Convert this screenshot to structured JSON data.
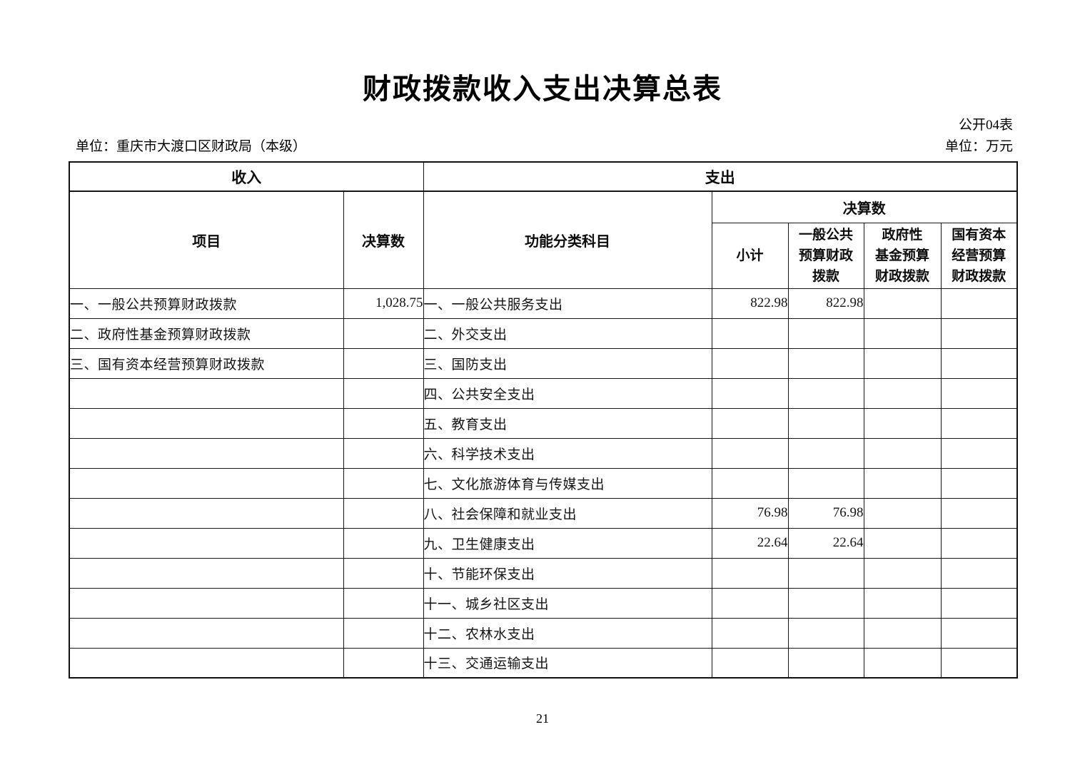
{
  "page": {
    "title": "财政拨款收入支出决算总表",
    "table_code": "公开04表",
    "unit_left": "单位：重庆市大渡口区财政局（本级）",
    "unit_right": "单位：万元",
    "page_number": "21"
  },
  "table": {
    "income_header": "收入",
    "expense_header": "支出",
    "income_columns": [
      "项目",
      "决算数"
    ],
    "expense_item_header": "功能分类科目",
    "expense_total_header": "决算数",
    "expense_sub_columns": [
      "小计",
      "一般公共\n预算财政\n拨款",
      "政府性\n基金预算\n财政拨款",
      "国有资本\n经营预算\n财政拨款"
    ],
    "rows": [
      {
        "income_item": "一、一般公共预算财政拨款",
        "income_amount": "1,028.75",
        "expense_item": "一、一般公共服务支出",
        "subtotal": "822.98",
        "general_budget": "822.98",
        "gov_fund": "",
        "state_capital": ""
      },
      {
        "income_item": "二、政府性基金预算财政拨款",
        "income_amount": "",
        "expense_item": "二、外交支出",
        "subtotal": "",
        "general_budget": "",
        "gov_fund": "",
        "state_capital": ""
      },
      {
        "income_item": "三、国有资本经营预算财政拨款",
        "income_amount": "",
        "expense_item": "三、国防支出",
        "subtotal": "",
        "general_budget": "",
        "gov_fund": "",
        "state_capital": ""
      },
      {
        "income_item": "",
        "income_amount": "",
        "expense_item": "四、公共安全支出",
        "subtotal": "",
        "general_budget": "",
        "gov_fund": "",
        "state_capital": ""
      },
      {
        "income_item": "",
        "income_amount": "",
        "expense_item": "五、教育支出",
        "subtotal": "",
        "general_budget": "",
        "gov_fund": "",
        "state_capital": ""
      },
      {
        "income_item": "",
        "income_amount": "",
        "expense_item": "六、科学技术支出",
        "subtotal": "",
        "general_budget": "",
        "gov_fund": "",
        "state_capital": ""
      },
      {
        "income_item": "",
        "income_amount": "",
        "expense_item": "七、文化旅游体育与传媒支出",
        "subtotal": "",
        "general_budget": "",
        "gov_fund": "",
        "state_capital": ""
      },
      {
        "income_item": "",
        "income_amount": "",
        "expense_item": "八、社会保障和就业支出",
        "subtotal": "76.98",
        "general_budget": "76.98",
        "gov_fund": "",
        "state_capital": ""
      },
      {
        "income_item": "",
        "income_amount": "",
        "expense_item": "九、卫生健康支出",
        "subtotal": "22.64",
        "general_budget": "22.64",
        "gov_fund": "",
        "state_capital": ""
      },
      {
        "income_item": "",
        "income_amount": "",
        "expense_item": "十、节能环保支出",
        "subtotal": "",
        "general_budget": "",
        "gov_fund": "",
        "state_capital": ""
      },
      {
        "income_item": "",
        "income_amount": "",
        "expense_item": "十一、城乡社区支出",
        "subtotal": "",
        "general_budget": "",
        "gov_fund": "",
        "state_capital": ""
      },
      {
        "income_item": "",
        "income_amount": "",
        "expense_item": "十二、农林水支出",
        "subtotal": "",
        "general_budget": "",
        "gov_fund": "",
        "state_capital": ""
      },
      {
        "income_item": "",
        "income_amount": "",
        "expense_item": "十三、交通运输支出",
        "subtotal": "",
        "general_budget": "",
        "gov_fund": "",
        "state_capital": ""
      }
    ]
  }
}
